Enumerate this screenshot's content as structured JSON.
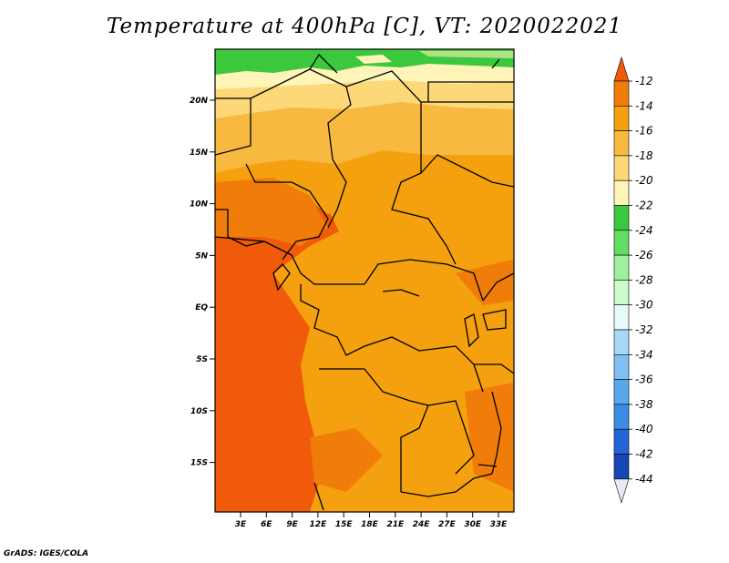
{
  "title": "Temperature at 400hPa [C], VT: 2020022021",
  "credit": "GrADS: IGES/COLA",
  "lat_ticks": [
    "20N",
    "15N",
    "10N",
    "5N",
    "EQ",
    "5S",
    "10S",
    "15S"
  ],
  "lon_ticks": [
    "3E",
    "6E",
    "9E",
    "12E",
    "15E",
    "18E",
    "21E",
    "24E",
    "27E",
    "30E",
    "33E"
  ],
  "colorbar": {
    "labels": [
      "-12",
      "-14",
      "-16",
      "-18",
      "-20",
      "-22",
      "-24",
      "-26",
      "-28",
      "-30",
      "-32",
      "-34",
      "-36",
      "-38",
      "-40",
      "-42",
      "-44"
    ],
    "colors": [
      "#f05a0a",
      "#f07d0a",
      "#f5a00f",
      "#f8b940",
      "#fcd878",
      "#fff5b8",
      "#3cc83c",
      "#64dc64",
      "#9ef09e",
      "#ccfccc",
      "#e6fafa",
      "#a8d8f8",
      "#82c0f2",
      "#5aa8ec",
      "#3c8ce6",
      "#2364d6",
      "#1446b4",
      "#0a2890",
      "#e8e8f8"
    ]
  },
  "icons": {
    "colorbar_top": "triangle-up-icon",
    "colorbar_bottom": "triangle-down-icon"
  }
}
